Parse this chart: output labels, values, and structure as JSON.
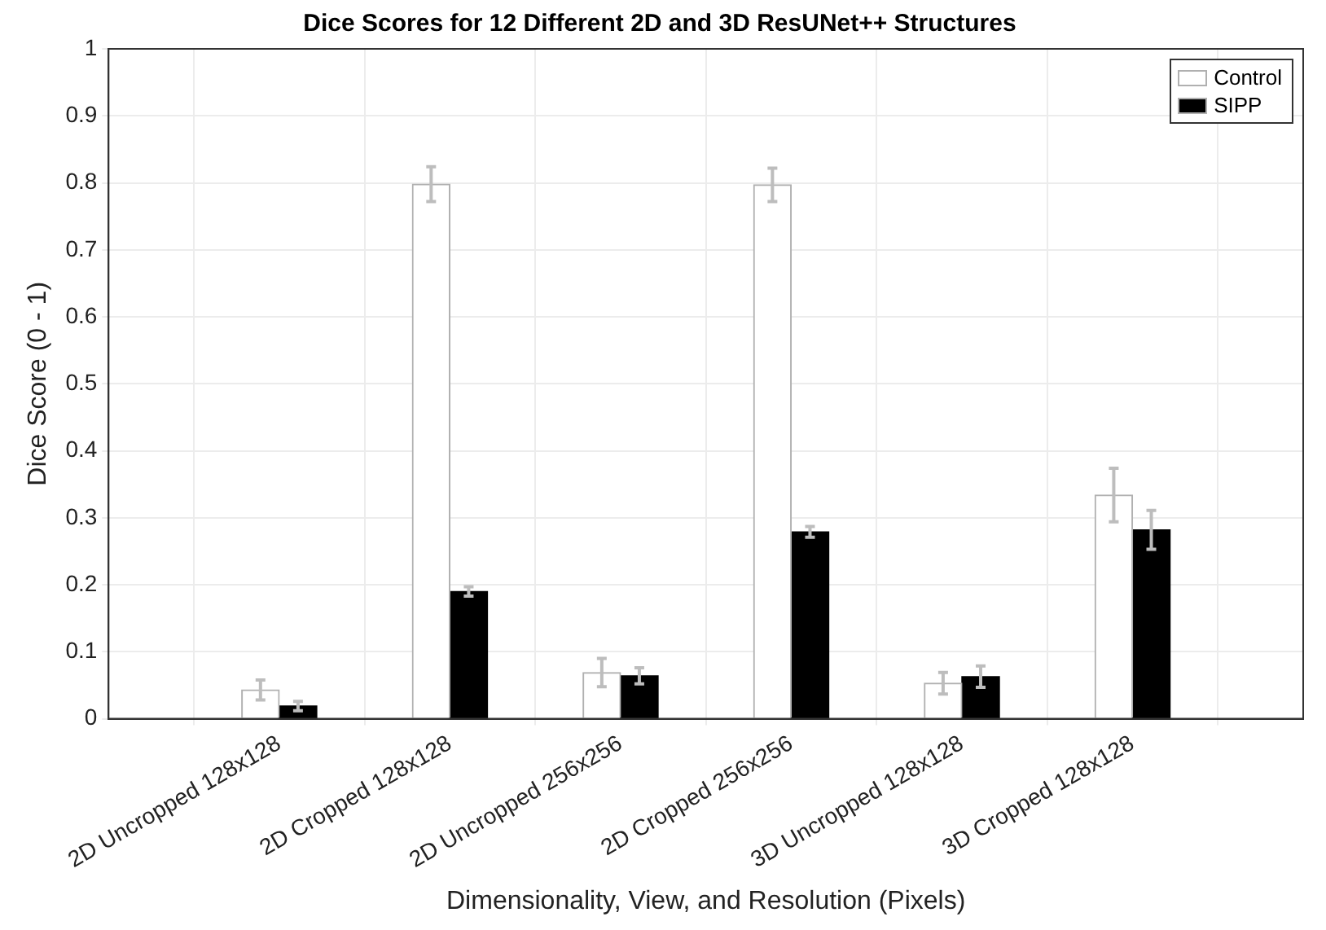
{
  "chart_data": {
    "type": "bar",
    "title": "Dice Scores for 12 Different 2D and 3D ResUNet++ Structures",
    "xlabel": "Dimensionality, View, and Resolution (Pixels)",
    "ylabel": "Dice Score (0 - 1)",
    "categories": [
      "2D Uncropped 128x128",
      "2D Cropped 128x128",
      "2D Uncropped 256x256",
      "2D Cropped 256x256",
      "3D Uncropped 128x128",
      "3D Cropped 128x128"
    ],
    "series": [
      {
        "name": "Control",
        "color": "#ffffff",
        "values": [
          0.043,
          0.798,
          0.069,
          0.797,
          0.053,
          0.334
        ],
        "errors": [
          0.015,
          0.026,
          0.021,
          0.025,
          0.016,
          0.04
        ]
      },
      {
        "name": "SIPP",
        "color": "#000000",
        "values": [
          0.019,
          0.19,
          0.064,
          0.279,
          0.063,
          0.282
        ],
        "errors": [
          0.007,
          0.007,
          0.012,
          0.008,
          0.016,
          0.029
        ]
      }
    ],
    "ylim": [
      0,
      1
    ],
    "yticks": [
      0,
      0.1,
      0.2,
      0.3,
      0.4,
      0.5,
      0.6,
      0.7,
      0.8,
      0.9,
      1
    ],
    "grid": true,
    "legend": "top right"
  }
}
